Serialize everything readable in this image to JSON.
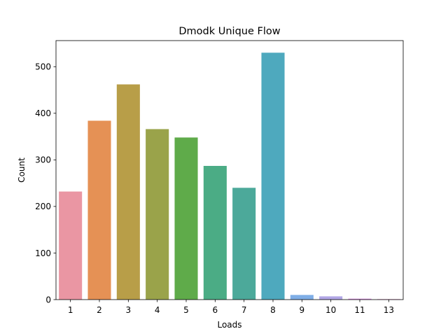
{
  "chart_data": {
    "type": "bar",
    "title": "Dmodk Unique Flow",
    "xlabel": "Loads",
    "ylabel": "Count",
    "categories": [
      "1",
      "2",
      "3",
      "4",
      "5",
      "6",
      "7",
      "8",
      "9",
      "10",
      "11",
      "13"
    ],
    "values": [
      232,
      384,
      462,
      366,
      348,
      287,
      240,
      530,
      10,
      7,
      2,
      1
    ],
    "colors": [
      "#ea96a3",
      "#e59155",
      "#b89e48",
      "#9aa34a",
      "#5fab4a",
      "#4bac85",
      "#4ca99a",
      "#4ea9be",
      "#7faee6",
      "#b2a7e6",
      "#db8fe4",
      "#e68ec7"
    ],
    "ylim": [
      0,
      556
    ],
    "yticks": [
      0,
      100,
      200,
      300,
      400,
      500
    ],
    "grid": false,
    "legend": "none"
  }
}
